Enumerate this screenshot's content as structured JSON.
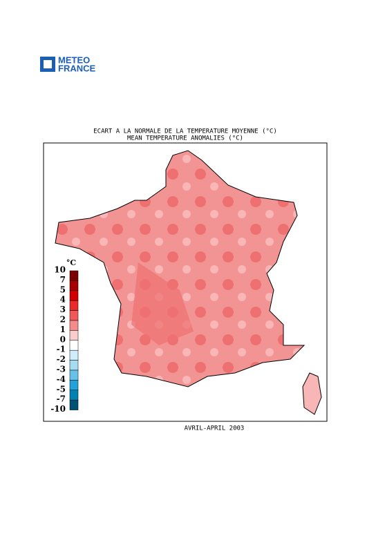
{
  "logo": {
    "line1": "METEO",
    "line2": "FRANCE"
  },
  "title": {
    "line1": "ECART A LA NORMALE DE LA TEMPERATURE MOYENNE (°C)",
    "line2": "MEAN TEMPERATURE ANOMALIES (°C)"
  },
  "legend": {
    "unit": "°C",
    "ticks": [
      10,
      7,
      5,
      4,
      3,
      2,
      1,
      0,
      -1,
      -2,
      -3,
      -4,
      -5,
      -7,
      -10
    ],
    "colors": [
      "#7a0000",
      "#a80000",
      "#d40000",
      "#ec2a2a",
      "#f25858",
      "#f58c8c",
      "#fbcccc",
      "#ffffff",
      "#cdeefa",
      "#a4dcf2",
      "#66c2ea",
      "#22a2da",
      "#0082b4",
      "#005274"
    ]
  },
  "footer": "AVRIL-APRIL 2003"
}
